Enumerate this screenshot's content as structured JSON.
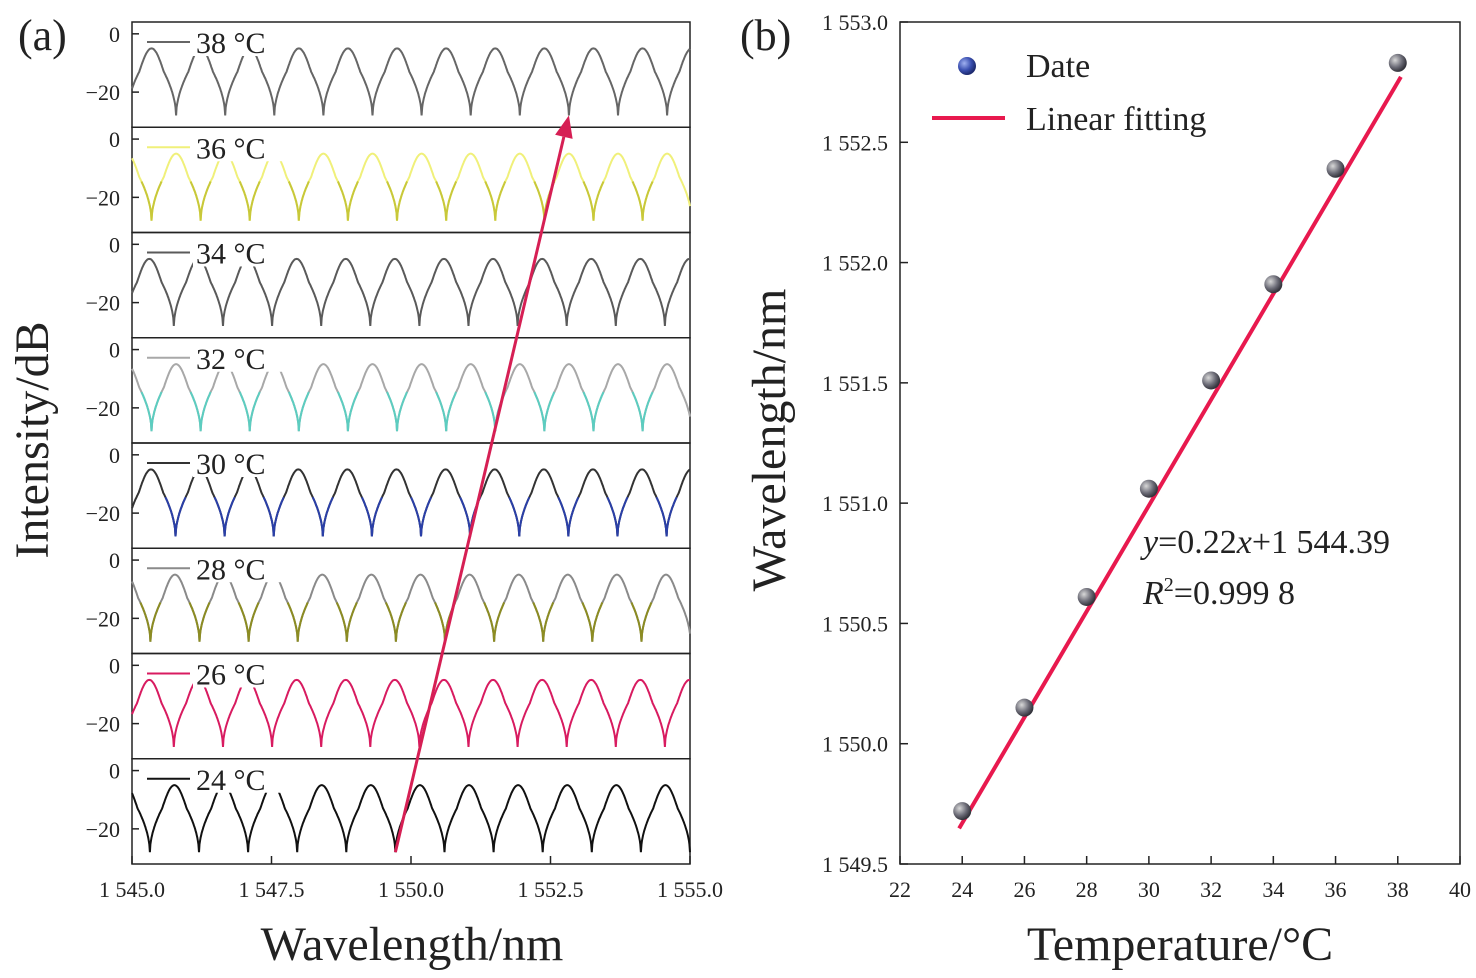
{
  "figure": {
    "panels": [
      {
        "label": "(a)",
        "chart_data": {
          "type": "line",
          "xlabel": "Wavelength/nm",
          "ylabel": "Intensity/dB",
          "x_ticks": [
            "1 545.0",
            "1 547.5",
            "1 550.0",
            "1 552.5",
            "1 555.0"
          ],
          "xlim": [
            1545.0,
            1555.0
          ],
          "y_ticks": [
            "0",
            "−20"
          ],
          "ylim_per_trace": [
            -30,
            2
          ],
          "comb": {
            "peak_db": -5,
            "dip_db": -28,
            "fsr_nm": 0.88
          },
          "series": [
            {
              "name": "38 °C",
              "color": "#666666",
              "dip_color": "#666666",
              "dip_ref_nm": 1552.83
            },
            {
              "name": "36 °C",
              "color": "#f0f07a",
              "dip_color": "#c8c83a",
              "dip_ref_nm": 1552.39
            },
            {
              "name": "34 °C",
              "color": "#5a5a5a",
              "dip_color": "#5a5a5a",
              "dip_ref_nm": 1551.91
            },
            {
              "name": "32 °C",
              "color": "#a8a8a8",
              "dip_color": "#5ccdc0",
              "dip_ref_nm": 1551.51
            },
            {
              "name": "30 °C",
              "color": "#333333",
              "dip_color": "#2a3fa8",
              "dip_ref_nm": 1551.06
            },
            {
              "name": "28 °C",
              "color": "#8a8a8a",
              "dip_color": "#8c8c22",
              "dip_ref_nm": 1550.61
            },
            {
              "name": "26 °C",
              "color": "#d81b60",
              "dip_color": "#d81b60",
              "dip_ref_nm": 1550.15
            },
            {
              "name": "24 °C",
              "color": "#111111",
              "dip_color": "#111111",
              "dip_ref_nm": 1549.72
            }
          ],
          "arrow": {
            "from_nm": 1549.72,
            "from_trace": 7,
            "to_nm": 1552.83,
            "to_trace": 0,
            "color": "#d61f54"
          }
        }
      },
      {
        "label": "(b)",
        "chart_data": {
          "type": "scatter",
          "xlabel": "Temperature/°C",
          "ylabel": "Wavelength/nm",
          "xlim": [
            22,
            40
          ],
          "ylim": [
            1549.5,
            1553.0
          ],
          "x_ticks": [
            "22",
            "24",
            "26",
            "28",
            "30",
            "32",
            "34",
            "36",
            "38",
            "40"
          ],
          "y_ticks": [
            "1 549.5",
            "1 550.0",
            "1 550.5",
            "1 551.0",
            "1 551.5",
            "1 552.0",
            "1 552.5",
            "1 553.0"
          ],
          "series": [
            {
              "name": "Date",
              "kind": "points",
              "color": "#3a4fb0",
              "x": [
                24,
                26,
                28,
                30,
                32,
                34,
                36,
                38
              ],
              "y": [
                1549.72,
                1550.15,
                1550.61,
                1551.06,
                1551.51,
                1551.91,
                1552.39,
                1552.83
              ]
            },
            {
              "name": "Linear fitting",
              "kind": "line",
              "color": "#e8194e",
              "slope": 0.22,
              "intercept": 1544.39,
              "x_range": [
                24,
                38
              ]
            }
          ],
          "equation": {
            "y": "y",
            "eq1": "=0.22",
            "x": "x",
            "eq2": "+1 544.39"
          },
          "r2": {
            "r": "R",
            "sup": "2",
            "val": "=0.999 8"
          },
          "legend": "top-left"
        }
      }
    ]
  }
}
